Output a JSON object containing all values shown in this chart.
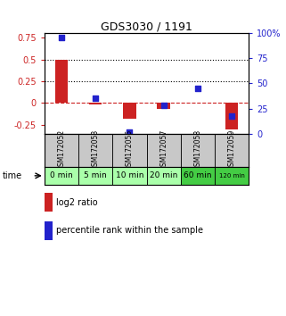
{
  "title": "GDS3030 / 1191",
  "samples": [
    "GSM172052",
    "GSM172053",
    "GSM172055",
    "GSM172057",
    "GSM172058",
    "GSM172059"
  ],
  "time_labels": [
    "0 min",
    "5 min",
    "10 min",
    "20 min",
    "60 min",
    "120 min"
  ],
  "log2_ratio": [
    0.5,
    -0.02,
    -0.18,
    -0.07,
    0.005,
    -0.3
  ],
  "percentile_rank": [
    96,
    35,
    2,
    28,
    45,
    18
  ],
  "bar_color": "#cc2222",
  "dot_color": "#2222cc",
  "ylim_left": [
    -0.35,
    0.8
  ],
  "ylim_right": [
    0,
    100
  ],
  "yticks_left": [
    -0.25,
    0,
    0.25,
    0.5,
    0.75
  ],
  "yticks_right": [
    0,
    25,
    50,
    75,
    100
  ],
  "hlines": [
    0.5,
    0.25
  ],
  "background_color": "#ffffff",
  "time_row_colors": [
    "#aaffaa",
    "#aaffaa",
    "#aaffaa",
    "#aaffaa",
    "#44cc44",
    "#44cc44"
  ],
  "sample_row_color": "#c8c8c8",
  "legend_log2": "log2 ratio",
  "legend_percentile": "percentile rank within the sample"
}
